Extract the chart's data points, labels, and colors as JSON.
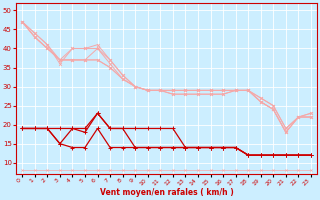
{
  "x": [
    0,
    1,
    2,
    3,
    4,
    5,
    6,
    7,
    8,
    9,
    10,
    11,
    12,
    13,
    14,
    15,
    16,
    17,
    18,
    19,
    20,
    21,
    22,
    23
  ],
  "lines_light": [
    [
      47,
      44,
      41,
      37,
      40,
      40,
      41,
      37,
      33,
      30,
      29,
      29,
      29,
      29,
      29,
      29,
      29,
      29,
      29,
      26,
      24,
      18,
      22,
      22
    ],
    [
      47,
      44,
      41,
      36,
      40,
      40,
      40,
      37,
      33,
      30,
      29,
      29,
      29,
      29,
      29,
      29,
      29,
      29,
      29,
      26,
      24,
      18,
      22,
      22
    ],
    [
      47,
      43,
      40,
      37,
      37,
      37,
      40,
      36,
      32,
      30,
      29,
      29,
      29,
      29,
      29,
      29,
      29,
      29,
      29,
      26,
      24,
      18,
      22,
      22
    ],
    [
      47,
      43,
      40,
      37,
      37,
      37,
      37,
      35,
      32,
      30,
      29,
      29,
      28,
      28,
      28,
      28,
      28,
      29,
      29,
      27,
      25,
      19,
      22,
      23
    ],
    [
      47,
      43,
      40,
      37,
      37,
      37,
      37,
      35,
      32,
      30,
      29,
      29,
      28,
      28,
      28,
      28,
      28,
      29,
      29,
      27,
      25,
      19,
      22,
      23
    ]
  ],
  "lines_dark": [
    [
      19,
      19,
      19,
      19,
      19,
      19,
      23,
      19,
      19,
      19,
      19,
      19,
      19,
      14,
      14,
      14,
      14,
      14,
      12,
      12,
      12,
      12,
      12,
      12
    ],
    [
      19,
      19,
      19,
      15,
      19,
      18,
      23,
      19,
      19,
      14,
      14,
      14,
      14,
      14,
      14,
      14,
      14,
      14,
      12,
      12,
      12,
      12,
      12,
      12
    ],
    [
      19,
      19,
      19,
      15,
      14,
      14,
      19,
      14,
      14,
      14,
      14,
      14,
      14,
      14,
      14,
      14,
      14,
      14,
      12,
      12,
      12,
      12,
      12,
      12
    ]
  ],
  "line_tiny": [
    8,
    8,
    8,
    8,
    8,
    8,
    8,
    8,
    8,
    8,
    8,
    8,
    8,
    8,
    8,
    8,
    8,
    8,
    8,
    8,
    8,
    8,
    8,
    8
  ],
  "color_light": "#f5a8a8",
  "color_dark": "#cc0000",
  "color_tiny": "#f5a8a8",
  "bg_color": "#cceeff",
  "grid_color": "#ffffff",
  "xlabel": "Vent moyen/en rafales ( km/h )",
  "xlabel_color": "#cc0000",
  "xlim_min": -0.5,
  "xlim_max": 23.5,
  "ylim_min": 7,
  "ylim_max": 52,
  "yticks": [
    10,
    15,
    20,
    25,
    30,
    35,
    40,
    45,
    50
  ],
  "xticks": [
    0,
    1,
    2,
    3,
    4,
    5,
    6,
    7,
    8,
    9,
    10,
    11,
    12,
    13,
    14,
    15,
    16,
    17,
    18,
    19,
    20,
    21,
    22,
    23
  ]
}
